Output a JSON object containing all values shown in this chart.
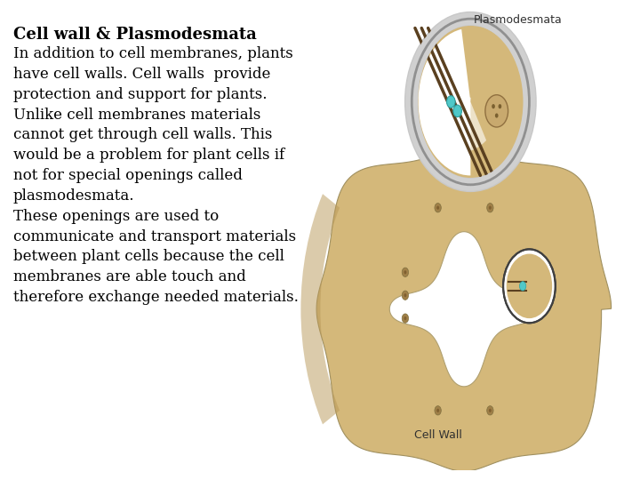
{
  "title": "Cell wall & Plasmodesmata",
  "title_fontsize": 13,
  "body_text": "In addition to cell membranes, plants\nhave cell walls. Cell walls  provide\nprotection and support for plants.\nUnlike cell membranes materials\ncannot get through cell walls. This\nwould be a problem for plant cells if\nnot for special openings called\nplasmodesmata.\nThese openings are used to\ncommunicate and transport materials\nbetween plant cells because the cell\nmembranes are able touch and\ntherefore exchange needed materials.",
  "body_fontsize": 12,
  "background_color": "#ffffff",
  "text_color": "#000000",
  "label_top": "Plasmodesmata",
  "label_bottom": "Cell Wall",
  "fig_width": 7.2,
  "fig_height": 5.4,
  "cell_wall_tan": "#D4B87A",
  "cell_wall_tan2": "#C8A96E",
  "cell_wall_shadow": "#B89858",
  "light_blue": "#C0D8EC",
  "circle_gray": "#C8C8C8",
  "circle_white": "#F0F0F0",
  "dark_brown": "#5A4020",
  "cyan_dot": "#50C8C8",
  "small_circle_outline": "#404040",
  "text_label_color": "#303030"
}
